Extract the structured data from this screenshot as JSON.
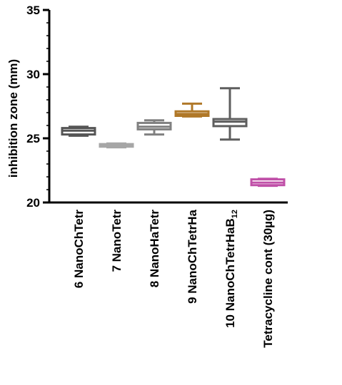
{
  "chart_data": {
    "type": "box",
    "ylabel": "inhibition zone (mm)",
    "xlabel": "",
    "ylim": [
      20,
      35
    ],
    "yticks": [
      20,
      25,
      30,
      35
    ],
    "grid": false,
    "legend": "none",
    "categories": [
      {
        "label": "6 NanoChTetr",
        "sub": ""
      },
      {
        "label": "7 NanoTetr",
        "sub": ""
      },
      {
        "label": "8 NanoHaTetr",
        "sub": ""
      },
      {
        "label": "9 NanoChTetrHa",
        "sub": ""
      },
      {
        "label": "10 NanoChTetrHaB",
        "sub": "12"
      },
      {
        "label": "Tetracycline cont (30µg)",
        "sub": ""
      }
    ],
    "boxes": [
      {
        "min": 25.2,
        "q1": 25.3,
        "median": 25.6,
        "q3": 25.8,
        "max": 25.9,
        "color": "#555555"
      },
      {
        "min": 24.3,
        "q1": 24.35,
        "median": 24.45,
        "q3": 24.55,
        "max": 24.6,
        "color": "#a6a6a6"
      },
      {
        "min": 25.3,
        "q1": 25.7,
        "median": 25.9,
        "q3": 26.2,
        "max": 26.4,
        "color": "#808080"
      },
      {
        "min": 26.7,
        "q1": 26.75,
        "median": 26.9,
        "q3": 27.1,
        "max": 27.7,
        "color": "#b07828"
      },
      {
        "min": 24.9,
        "q1": 25.95,
        "median": 26.3,
        "q3": 26.5,
        "max": 28.9,
        "color": "#5e5e5e"
      },
      {
        "min": 21.3,
        "q1": 21.35,
        "median": 21.55,
        "q3": 21.8,
        "max": 21.85,
        "color": "#c050a8"
      }
    ]
  }
}
